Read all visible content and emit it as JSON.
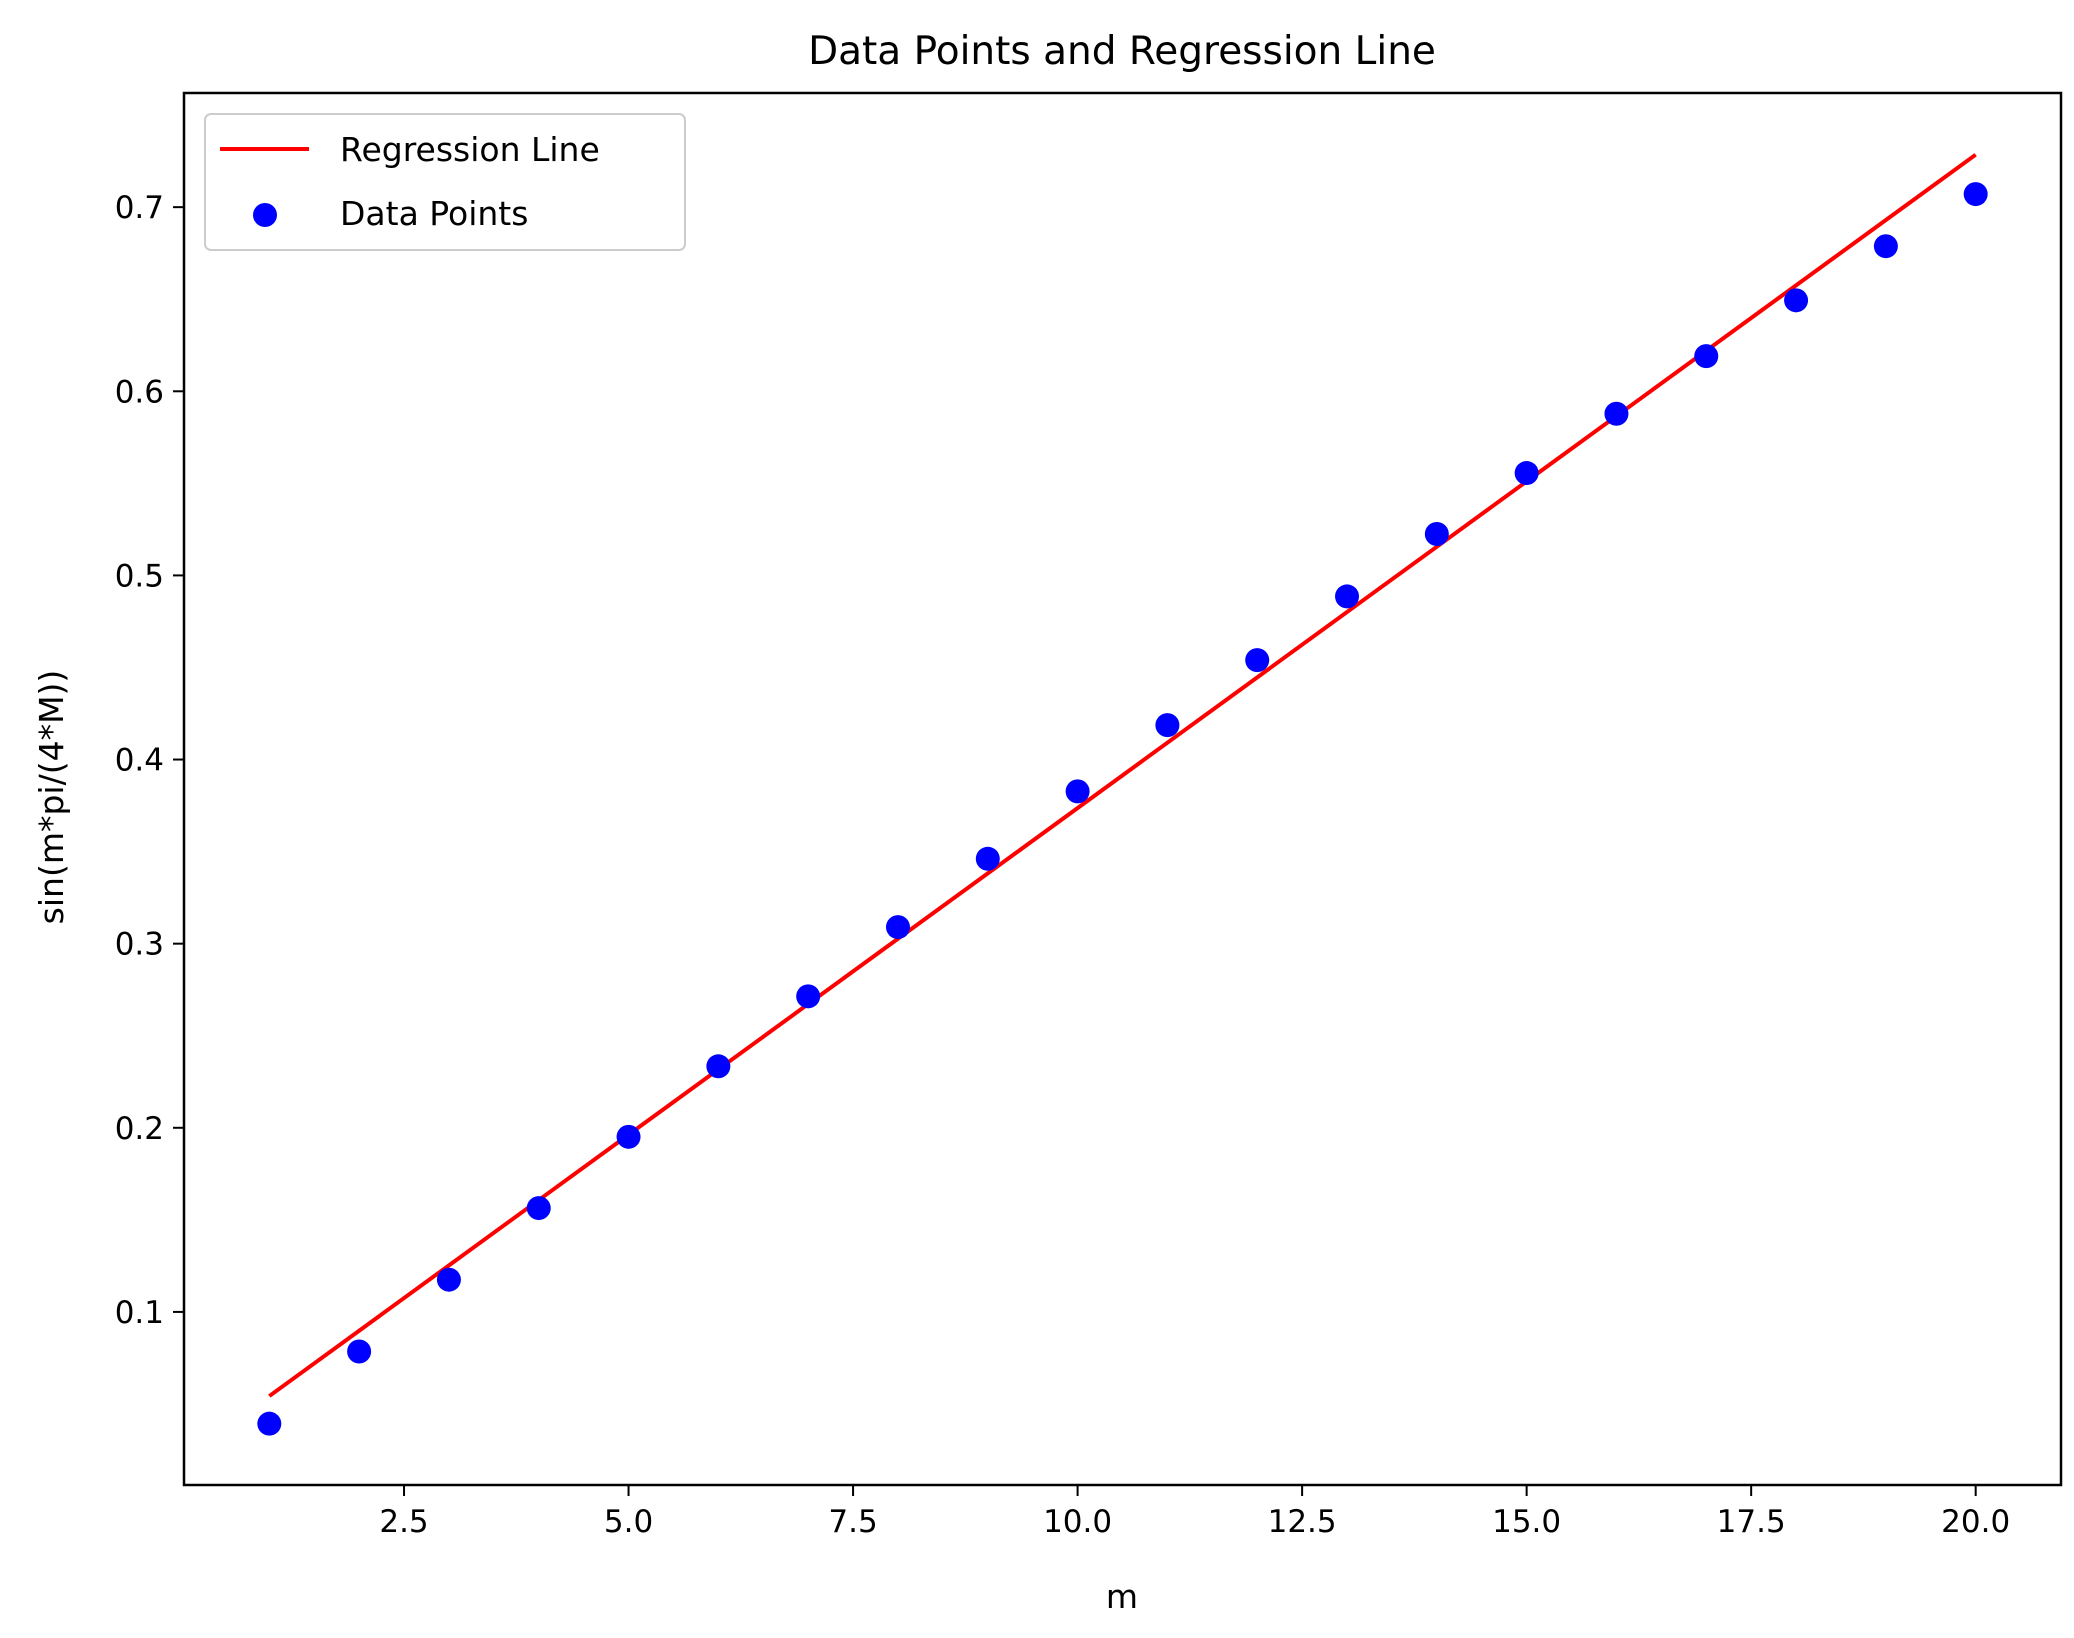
{
  "chart_data": {
    "type": "scatter",
    "title": "Data Points and Regression Line",
    "xlabel": "m",
    "ylabel": "sin(m*pi/(4*M))",
    "xlim": [
      0.05,
      20.95
    ],
    "ylim": [
      0.006,
      0.762
    ],
    "xticks": [
      2.5,
      5.0,
      7.5,
      10.0,
      12.5,
      15.0,
      17.5,
      20.0
    ],
    "xtick_labels": [
      "2.5",
      "5.0",
      "7.5",
      "10.0",
      "12.5",
      "15.0",
      "17.5",
      "20.0"
    ],
    "yticks": [
      0.1,
      0.2,
      0.3,
      0.4,
      0.5,
      0.6,
      0.7
    ],
    "ytick_labels": [
      "0.1",
      "0.2",
      "0.3",
      "0.4",
      "0.5",
      "0.6",
      "0.7"
    ],
    "grid": false,
    "legend_position": "top-left",
    "series": [
      {
        "name": "Regression Line",
        "kind": "line",
        "color": "#ff0000",
        "x": [
          1,
          20
        ],
        "y": [
          0.0543,
          0.7285
        ]
      },
      {
        "name": "Data Points",
        "kind": "scatter",
        "color": "#0000ff",
        "x": [
          1,
          2,
          3,
          4,
          5,
          6,
          7,
          8,
          9,
          10,
          11,
          12,
          13,
          14,
          15,
          16,
          17,
          18,
          19,
          20
        ],
        "y": [
          0.0393,
          0.0785,
          0.1175,
          0.1564,
          0.1951,
          0.2334,
          0.2714,
          0.309,
          0.3461,
          0.3827,
          0.4187,
          0.454,
          0.4886,
          0.5225,
          0.5556,
          0.5878,
          0.6191,
          0.6494,
          0.6788,
          0.7071
        ]
      }
    ]
  }
}
